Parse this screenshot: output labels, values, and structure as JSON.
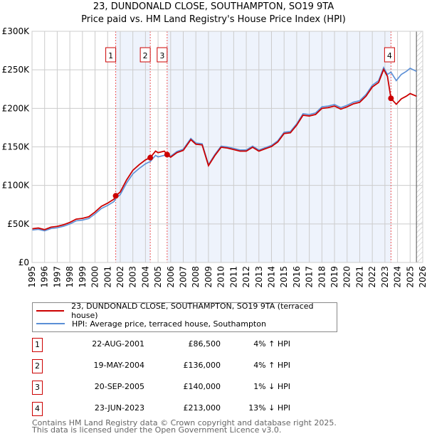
{
  "chart_data": {
    "type": "line",
    "title": "23, DUNDONALD CLOSE, SOUTHAMPTON, SO19 9TA",
    "subtitle": "Price paid vs. HM Land Registry's House Price Index (HPI)",
    "xlim": [
      1995,
      2026
    ],
    "ylim": [
      0,
      300000
    ],
    "yticks": [
      {
        "v": 0,
        "label": "£0"
      },
      {
        "v": 50000,
        "label": "£50K"
      },
      {
        "v": 100000,
        "label": "£100K"
      },
      {
        "v": 150000,
        "label": "£150K"
      },
      {
        "v": 200000,
        "label": "£200K"
      },
      {
        "v": 250000,
        "label": "£250K"
      },
      {
        "v": 300000,
        "label": "£300K"
      }
    ],
    "xticks": [
      "1995",
      "1996",
      "1997",
      "1998",
      "1999",
      "2000",
      "2001",
      "2002",
      "2003",
      "2004",
      "2005",
      "2006",
      "2007",
      "2008",
      "2009",
      "2010",
      "2011",
      "2012",
      "2013",
      "2014",
      "2015",
      "2016",
      "2017",
      "2018",
      "2019",
      "2020",
      "2021",
      "2022",
      "2023",
      "2024",
      "2025",
      "2026"
    ],
    "x": [
      1995,
      1995.5,
      1996,
      1996.5,
      1997,
      1997.5,
      1998,
      1998.5,
      1999,
      1999.5,
      2000,
      2000.5,
      2001,
      2001.5,
      2001.64,
      2002,
      2002.5,
      2003,
      2003.5,
      2004,
      2004.38,
      2004.8,
      2005,
      2005.5,
      2005.72,
      2006,
      2006.5,
      2007,
      2007.6,
      2008,
      2008.5,
      2009,
      2009.5,
      2010,
      2010.5,
      2011,
      2011.5,
      2012,
      2012.5,
      2013,
      2013.5,
      2014,
      2014.5,
      2015,
      2015.5,
      2016,
      2016.5,
      2017,
      2017.5,
      2018,
      2018.5,
      2019,
      2019.5,
      2020,
      2020.5,
      2021,
      2021.5,
      2022,
      2022.5,
      2022.9,
      2023.2,
      2023.48,
      2023.9,
      2024.3,
      2024.7,
      2025,
      2025.5
    ],
    "series": [
      {
        "name": "23, DUNDONALD CLOSE, SOUTHAMPTON, SO19 9TA (terraced house)",
        "color": "#cc0000",
        "values": [
          43700,
          44700,
          42600,
          45800,
          46800,
          48900,
          52000,
          56200,
          57200,
          59300,
          65500,
          72800,
          77000,
          82200,
          86500,
          91500,
          107000,
          119600,
          126900,
          133100,
          136000,
          144500,
          142500,
          144500,
          140000,
          136600,
          142600,
          145500,
          159400,
          153500,
          152500,
          125700,
          138600,
          149500,
          148500,
          146500,
          144500,
          144500,
          149500,
          144500,
          147500,
          150500,
          156400,
          167300,
          168300,
          178200,
          191100,
          190100,
          192100,
          200000,
          201000,
          203000,
          199000,
          202000,
          205900,
          207900,
          215800,
          227700,
          233600,
          250500,
          241600,
          213000,
          205300,
          212300,
          215800,
          219200,
          215800
        ]
      },
      {
        "name": "HPI: Average price, terraced house, Southampton",
        "color": "#5b8fd6",
        "values": [
          42000,
          43000,
          41000,
          44000,
          45000,
          47000,
          50000,
          54000,
          55000,
          57000,
          63000,
          70000,
          74000,
          79000,
          83000,
          88000,
          103000,
          115000,
          122000,
          128000,
          131000,
          139000,
          137000,
          139000,
          141000,
          138000,
          144000,
          147000,
          161000,
          155000,
          154000,
          127000,
          140000,
          151000,
          150000,
          148000,
          146000,
          146000,
          151000,
          146000,
          149000,
          152000,
          158000,
          169000,
          170000,
          180000,
          193000,
          192000,
          194000,
          202000,
          203000,
          205000,
          201000,
          204000,
          208000,
          210000,
          218000,
          230000,
          236000,
          253000,
          244000,
          247000,
          236000,
          244000,
          248000,
          252000,
          248000
        ]
      }
    ],
    "sales": [
      {
        "n": "1",
        "x": 2001.64,
        "y": 86500,
        "date": "22-AUG-2001",
        "price": "£86,500",
        "hpi": "4% ↑ HPI"
      },
      {
        "n": "2",
        "x": 2004.38,
        "y": 136000,
        "date": "19-MAY-2004",
        "price": "£136,000",
        "hpi": "4% ↑ HPI"
      },
      {
        "n": "3",
        "x": 2005.72,
        "y": 140000,
        "date": "20-SEP-2005",
        "price": "£140,000",
        "hpi": "1% ↓ HPI"
      },
      {
        "n": "4",
        "x": 2023.48,
        "y": 213000,
        "date": "23-JUN-2023",
        "price": "£213,000",
        "hpi": "13% ↓ HPI"
      }
    ],
    "forecast_from": 2025.5
  },
  "legend": {
    "property": "23, DUNDONALD CLOSE, SOUTHAMPTON, SO19 9TA (terraced house)",
    "hpi": "HPI: Average price, terraced house, Southampton"
  },
  "footer": {
    "line1": "Contains HM Land Registry data © Crown copyright and database right 2025.",
    "line2": "This data is licensed under the Open Government Licence v3.0."
  }
}
